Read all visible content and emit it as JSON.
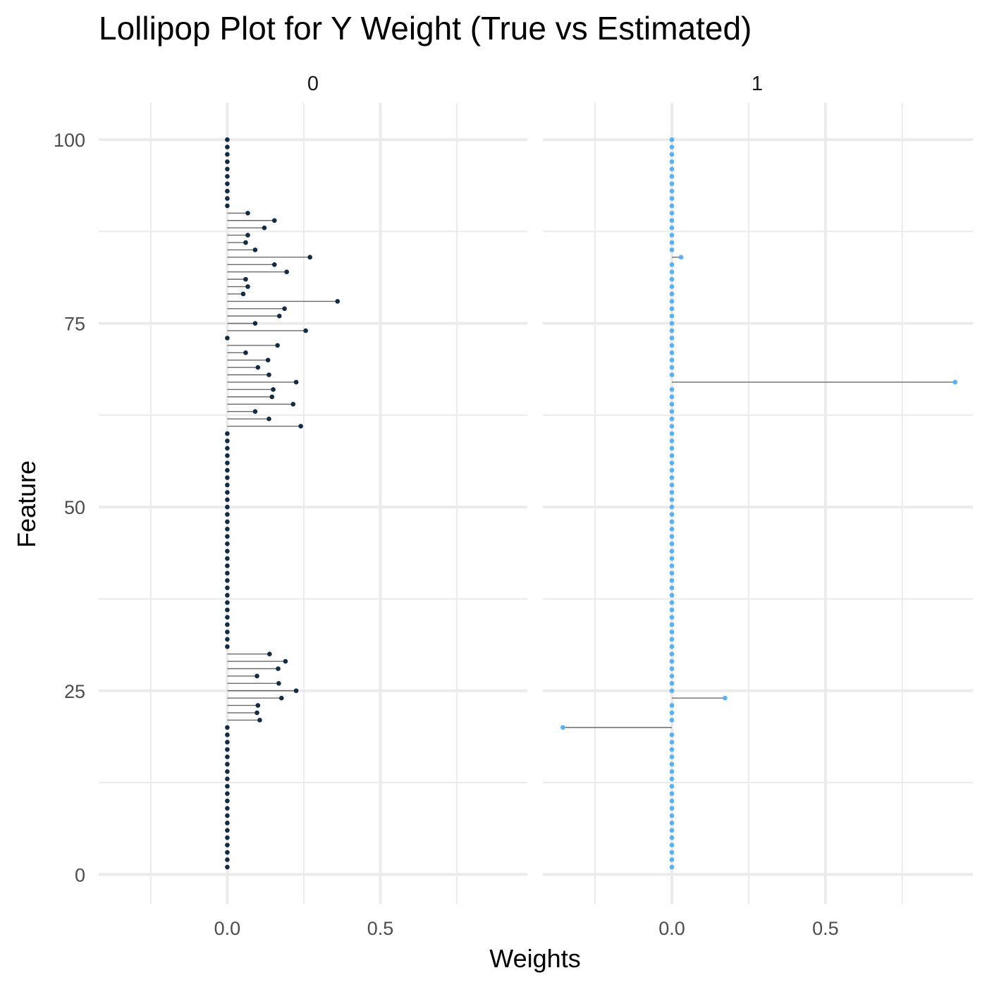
{
  "chart_data": {
    "type": "lollipop",
    "title": "Lollipop Plot for Y Weight (True vs Estimated)",
    "xlabel": "Weights",
    "ylabel": "Feature",
    "facets": [
      "0",
      "1"
    ],
    "x_ticks": [
      0.0,
      0.5
    ],
    "x_tick_labels": [
      "0.0",
      "0.5"
    ],
    "y_ticks": [
      0,
      25,
      50,
      75,
      100
    ],
    "y_tick_labels": [
      "0",
      "25",
      "50",
      "75",
      "100"
    ],
    "xlim": [
      -0.42,
      0.98
    ],
    "ylim": [
      -4,
      105
    ],
    "grid": true,
    "point_colors": [
      "#132b43",
      "#56b1f7"
    ],
    "panels": [
      {
        "facet": "0",
        "features": [
          1,
          2,
          3,
          4,
          5,
          6,
          7,
          8,
          9,
          10,
          11,
          12,
          13,
          14,
          15,
          16,
          17,
          18,
          19,
          20,
          21,
          22,
          23,
          24,
          25,
          26,
          27,
          28,
          29,
          30,
          31,
          32,
          33,
          34,
          35,
          36,
          37,
          38,
          39,
          40,
          41,
          42,
          43,
          44,
          45,
          46,
          47,
          48,
          49,
          50,
          51,
          52,
          53,
          54,
          55,
          56,
          57,
          58,
          59,
          60,
          61,
          62,
          63,
          64,
          65,
          66,
          67,
          68,
          69,
          70,
          71,
          72,
          73,
          74,
          75,
          76,
          77,
          78,
          79,
          80,
          81,
          82,
          83,
          84,
          85,
          86,
          87,
          88,
          89,
          90,
          91,
          92,
          93,
          94,
          95,
          96,
          97,
          98,
          99,
          100
        ],
        "weights": [
          0,
          0,
          0,
          0,
          0,
          0,
          0,
          0,
          0,
          0,
          0,
          0,
          0,
          0,
          0,
          0,
          0,
          0,
          0,
          0,
          0.106,
          0.097,
          0.1,
          0.177,
          0.225,
          0.168,
          0.097,
          0.166,
          0.19,
          0.138,
          0,
          0,
          0,
          0,
          0,
          0,
          0,
          0,
          0,
          0,
          0,
          0,
          0,
          0,
          0,
          0,
          0,
          0,
          0,
          0,
          0,
          0,
          0,
          0,
          0,
          0,
          0,
          0,
          0,
          0,
          0.24,
          0.136,
          0.091,
          0.215,
          0.146,
          0.15,
          0.225,
          0.136,
          0.1,
          0.133,
          0.06,
          0.164,
          0,
          0.256,
          0.091,
          0.17,
          0.187,
          0.36,
          0.052,
          0.067,
          0.06,
          0.194,
          0.154,
          0.27,
          0.091,
          0.06,
          0.067,
          0.121,
          0.154,
          0.067,
          0,
          0,
          0,
          0,
          0,
          0,
          0,
          0,
          0,
          0
        ]
      },
      {
        "facet": "1",
        "features": [
          1,
          2,
          3,
          4,
          5,
          6,
          7,
          8,
          9,
          10,
          11,
          12,
          13,
          14,
          15,
          16,
          17,
          18,
          19,
          20,
          21,
          22,
          23,
          24,
          25,
          26,
          27,
          28,
          29,
          30,
          31,
          32,
          33,
          34,
          35,
          36,
          37,
          38,
          39,
          40,
          41,
          42,
          43,
          44,
          45,
          46,
          47,
          48,
          49,
          50,
          51,
          52,
          53,
          54,
          55,
          56,
          57,
          58,
          59,
          60,
          61,
          62,
          63,
          64,
          65,
          66,
          67,
          68,
          69,
          70,
          71,
          72,
          73,
          74,
          75,
          76,
          77,
          78,
          79,
          80,
          81,
          82,
          83,
          84,
          85,
          86,
          87,
          88,
          89,
          90,
          91,
          92,
          93,
          94,
          95,
          96,
          97,
          98,
          99,
          100
        ],
        "weights": [
          0,
          0,
          0,
          0,
          0,
          0,
          0,
          0,
          0,
          0,
          0,
          0,
          0,
          0,
          0,
          0,
          0,
          0,
          0,
          -0.355,
          0,
          0,
          0,
          0.173,
          0,
          0,
          0,
          0,
          0,
          0,
          0,
          0,
          0,
          0,
          0,
          0,
          0,
          0,
          0,
          0,
          0,
          0,
          0,
          0,
          0,
          0,
          0,
          0,
          0,
          0,
          0,
          0,
          0,
          0,
          0,
          0,
          0,
          0,
          0,
          0,
          0,
          0,
          0,
          0,
          0,
          0,
          0.922,
          0,
          0,
          0,
          0,
          0,
          0,
          0,
          0,
          0,
          0,
          0,
          0,
          0,
          0,
          0,
          0,
          0.03,
          0,
          0,
          0,
          0,
          0,
          0,
          0,
          0,
          0,
          0,
          0,
          0,
          0,
          0,
          0,
          0
        ]
      }
    ]
  }
}
